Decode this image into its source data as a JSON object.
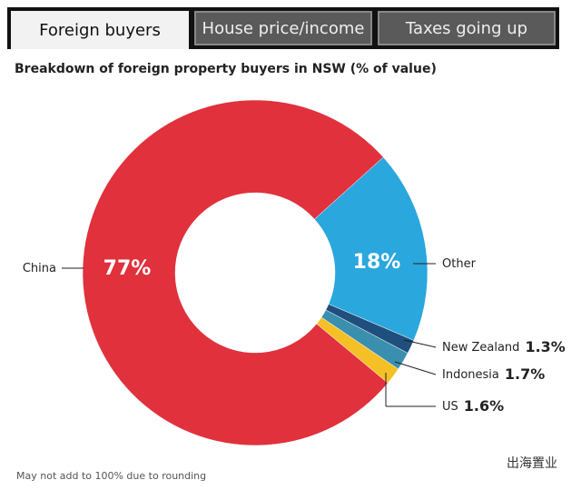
{
  "tabs": [
    "Foreign buyers",
    "House price/income",
    "Taxes going up"
  ],
  "chart_data": {
    "type": "donut",
    "title": "Breakdown of foreign property buyers in NSW (% of value)",
    "categories": [
      "Other",
      "New Zealand",
      "Indonesia",
      "US",
      "China"
    ],
    "values": [
      18,
      1.3,
      1.7,
      1.6,
      77
    ],
    "value_labels": [
      "18%",
      "1.3%",
      "1.7%",
      "1.6%",
      "77%"
    ],
    "colors": [
      "#2aa7dd",
      "#1f4f7d",
      "#3a8fae",
      "#f4c026",
      "#e0313c"
    ],
    "footnote": "May not add to 100% due to rounding"
  },
  "watermark": "出海置业"
}
